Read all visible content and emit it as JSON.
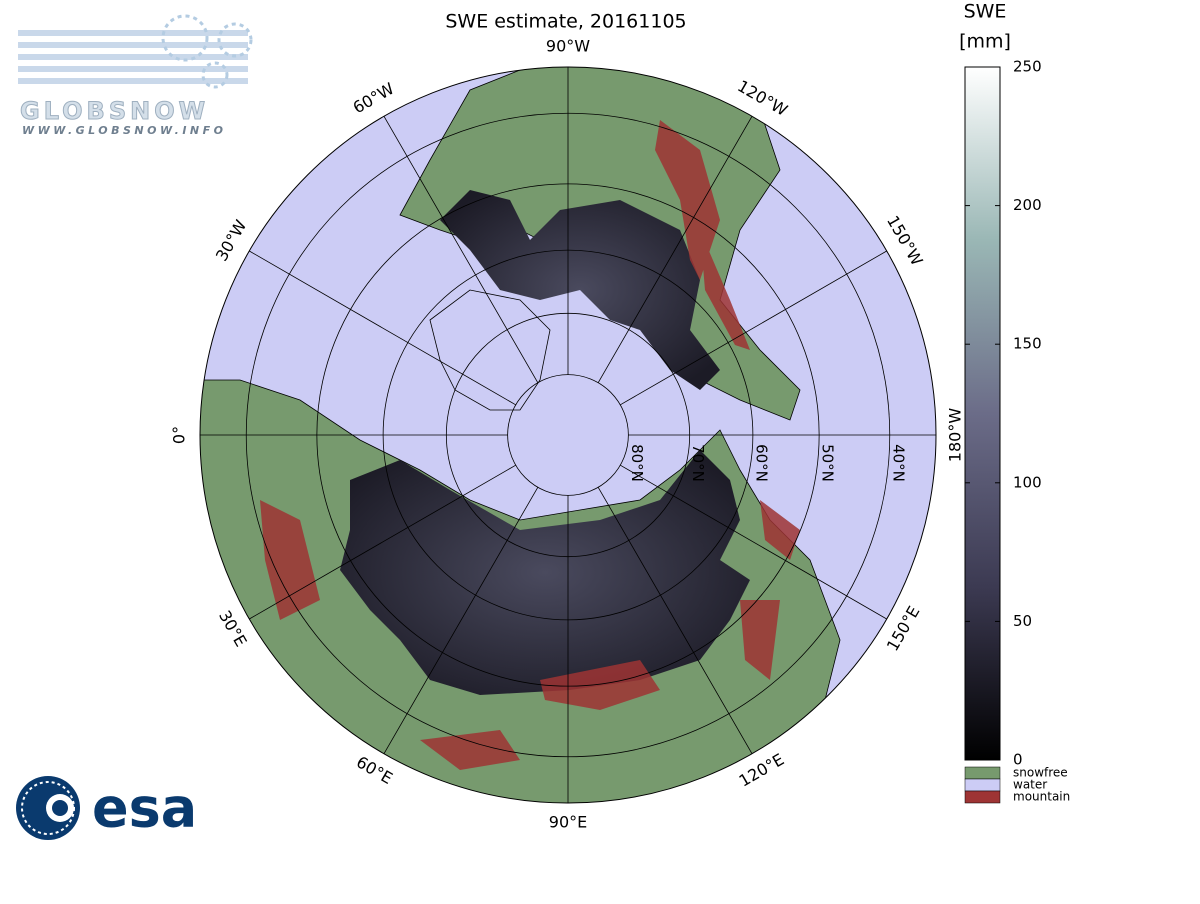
{
  "map": {
    "title": "SWE estimate, 20161105",
    "meridians": [
      {
        "value": -90,
        "label": "90°W"
      },
      {
        "value": -60,
        "label": "60°W"
      },
      {
        "value": -120,
        "label": "120°W"
      },
      {
        "value": -30,
        "label": "30°W"
      },
      {
        "value": -150,
        "label": "150°W"
      },
      {
        "value": 0,
        "label": "0°"
      },
      {
        "value": 180,
        "label": "180°W"
      },
      {
        "value": 30,
        "label": "30°E"
      },
      {
        "value": 150,
        "label": "150°E"
      },
      {
        "value": 60,
        "label": "60°E"
      },
      {
        "value": 120,
        "label": "120°E"
      },
      {
        "value": 90,
        "label": "90°E"
      }
    ],
    "parallels": [
      {
        "value": 80,
        "label": "80°N"
      },
      {
        "value": 70,
        "label": "70°N"
      },
      {
        "value": 60,
        "label": "60°N"
      },
      {
        "value": 50,
        "label": "50°N"
      },
      {
        "value": 40,
        "label": "40°N"
      }
    ]
  },
  "colorbar": {
    "title": [
      "SWE",
      "[mm]"
    ],
    "lim": [
      0,
      250
    ],
    "ticks": [
      0,
      50,
      100,
      150,
      200,
      250
    ],
    "classes": [
      {
        "label": "snowfree",
        "color": "#779a6e"
      },
      {
        "label": "water",
        "color": "#ccccf5"
      },
      {
        "label": "mountain",
        "color": "#9e3434"
      }
    ]
  },
  "logos": {
    "globsnow": "GLOBSNOW",
    "globsnow_url": "WWW.GLOBSNOW.INFO",
    "esa": "esa"
  }
}
